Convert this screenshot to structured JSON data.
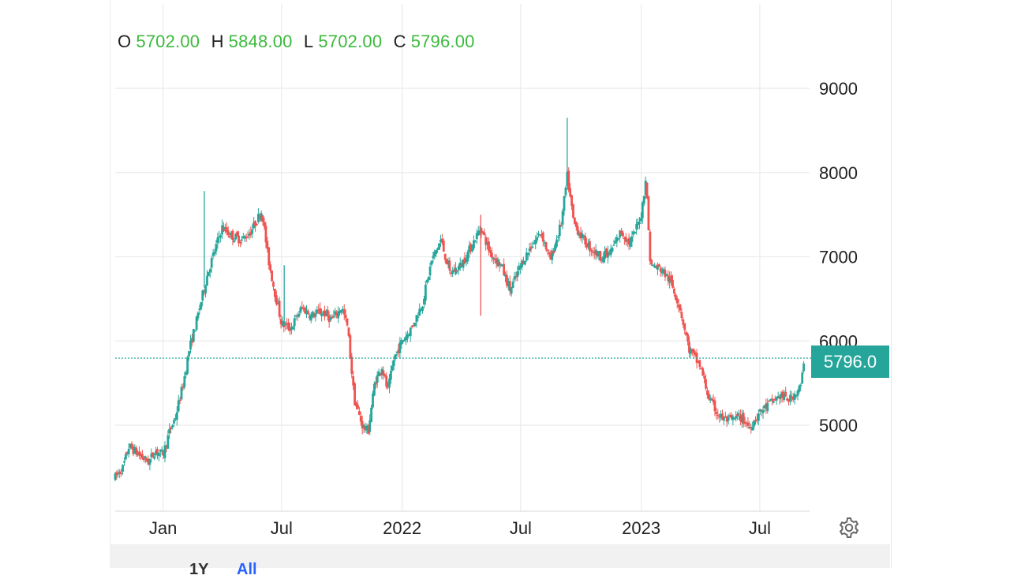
{
  "ohlc": {
    "o_label": "O",
    "o_value": "5702.00",
    "h_label": "H",
    "h_value": "5848.00",
    "l_label": "L",
    "l_value": "5702.00",
    "c_label": "C",
    "c_value": "5796.00"
  },
  "price_tag": "5796.0",
  "range_buttons": {
    "one_year": "1Y",
    "all": "All"
  },
  "colors": {
    "up": "#26a69a",
    "down": "#ef5350",
    "price_tag": "#26a69a",
    "ohlc_value": "#3cba3c",
    "grid": "#ebebeb"
  },
  "icons": {
    "settings": "gear-icon"
  },
  "chart_data": {
    "type": "candlestick",
    "title": "",
    "xlabel": "",
    "ylabel": "",
    "x_ticks": [
      "Jan",
      "Jul",
      "2022",
      "Jul",
      "2023",
      "Jul"
    ],
    "x_tick_dates": [
      "2021-01-01",
      "2021-07-01",
      "2022-01-01",
      "2022-07-01",
      "2023-01-01",
      "2023-07-01"
    ],
    "x_range": [
      "2020-10-20",
      "2023-09-15"
    ],
    "y_ticks": [
      5000,
      6000,
      7000,
      8000,
      9000
    ],
    "ylim": [
      4100,
      9600
    ],
    "grid": true,
    "current_price": 5796,
    "price_path": [
      [
        "2020-10-20",
        4380
      ],
      [
        "2020-11-01",
        4500
      ],
      [
        "2020-11-10",
        4750
      ],
      [
        "2020-11-25",
        4650
      ],
      [
        "2020-12-10",
        4560
      ],
      [
        "2020-12-20",
        4700
      ],
      [
        "2021-01-01",
        4650
      ],
      [
        "2021-01-10",
        4900
      ],
      [
        "2021-01-20",
        5100
      ],
      [
        "2021-02-01",
        5500
      ],
      [
        "2021-02-10",
        5900
      ],
      [
        "2021-02-20",
        6200
      ],
      [
        "2021-03-01",
        6500
      ],
      [
        "2021-03-10",
        6800
      ],
      [
        "2021-03-20",
        7050
      ],
      [
        "2021-04-01",
        7350
      ],
      [
        "2021-04-15",
        7250
      ],
      [
        "2021-05-01",
        7200
      ],
      [
        "2021-05-15",
        7300
      ],
      [
        "2021-06-01",
        7550
      ],
      [
        "2021-06-10",
        7000
      ],
      [
        "2021-06-20",
        6600
      ],
      [
        "2021-07-01",
        6200
      ],
      [
        "2021-07-15",
        6150
      ],
      [
        "2021-08-01",
        6400
      ],
      [
        "2021-08-15",
        6300
      ],
      [
        "2021-09-01",
        6350
      ],
      [
        "2021-09-15",
        6250
      ],
      [
        "2021-10-01",
        6400
      ],
      [
        "2021-10-10",
        6150
      ],
      [
        "2021-10-20",
        5300
      ],
      [
        "2021-11-01",
        5000
      ],
      [
        "2021-11-10",
        4920
      ],
      [
        "2021-11-20",
        5500
      ],
      [
        "2021-12-01",
        5700
      ],
      [
        "2021-12-10",
        5400
      ],
      [
        "2021-12-20",
        5800
      ],
      [
        "2022-01-01",
        6000
      ],
      [
        "2022-01-15",
        6150
      ],
      [
        "2022-02-01",
        6450
      ],
      [
        "2022-02-15",
        6950
      ],
      [
        "2022-03-01",
        7200
      ],
      [
        "2022-03-15",
        6800
      ],
      [
        "2022-04-01",
        6900
      ],
      [
        "2022-04-15",
        7100
      ],
      [
        "2022-05-01",
        7350
      ],
      [
        "2022-05-15",
        7050
      ],
      [
        "2022-06-01",
        6900
      ],
      [
        "2022-06-15",
        6600
      ],
      [
        "2022-07-01",
        6900
      ],
      [
        "2022-07-15",
        7100
      ],
      [
        "2022-08-01",
        7300
      ],
      [
        "2022-08-15",
        6950
      ],
      [
        "2022-09-01",
        7400
      ],
      [
        "2022-09-10",
        7950
      ],
      [
        "2022-09-20",
        7400
      ],
      [
        "2022-10-01",
        7250
      ],
      [
        "2022-10-15",
        7100
      ],
      [
        "2022-11-01",
        7000
      ],
      [
        "2022-11-15",
        7050
      ],
      [
        "2022-12-01",
        7300
      ],
      [
        "2022-12-15",
        7150
      ],
      [
        "2023-01-01",
        7500
      ],
      [
        "2023-01-08",
        7950
      ],
      [
        "2023-01-15",
        6900
      ],
      [
        "2023-02-01",
        6850
      ],
      [
        "2023-02-15",
        6700
      ],
      [
        "2023-03-01",
        6400
      ],
      [
        "2023-03-15",
        5900
      ],
      [
        "2023-04-01",
        5700
      ],
      [
        "2023-04-15",
        5300
      ],
      [
        "2023-05-01",
        5100
      ],
      [
        "2023-05-15",
        5050
      ],
      [
        "2023-06-01",
        5100
      ],
      [
        "2023-06-15",
        4980
      ],
      [
        "2023-07-01",
        5150
      ],
      [
        "2023-07-15",
        5250
      ],
      [
        "2023-08-01",
        5350
      ],
      [
        "2023-08-15",
        5300
      ],
      [
        "2023-09-01",
        5450
      ],
      [
        "2023-09-08",
        5796
      ]
    ],
    "spikes": [
      {
        "date": "2021-03-05",
        "high": 7780
      },
      {
        "date": "2021-07-05",
        "high": 6900
      },
      {
        "date": "2022-05-01",
        "low": 6300,
        "high": 7500
      },
      {
        "date": "2022-09-10",
        "high": 8650
      }
    ]
  }
}
